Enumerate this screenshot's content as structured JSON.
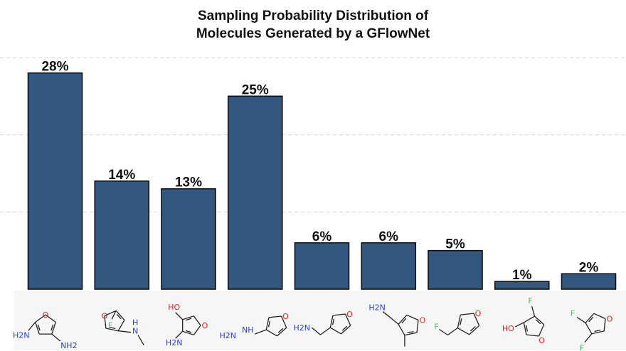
{
  "chart_data": {
    "type": "bar",
    "title_lines": [
      "Sampling Probability Distribution of",
      "Molecules Generated by a GFlowNet"
    ],
    "categories": [
      "mol-1",
      "mol-2",
      "mol-3",
      "mol-4",
      "mol-5",
      "mol-6",
      "mol-7",
      "mol-8",
      "mol-9"
    ],
    "values": [
      28,
      14,
      13,
      25,
      6,
      6,
      5,
      1,
      2
    ],
    "value_labels": [
      "28%",
      "14%",
      "13%",
      "25%",
      "6%",
      "6%",
      "5%",
      "1%",
      "2%"
    ],
    "ylim": [
      0,
      30
    ],
    "grid": true,
    "bar_color": "#34577f",
    "molecule_labels": [
      [
        "O",
        "H2N",
        "NH2"
      ],
      [
        "O",
        "F",
        "N",
        "H"
      ],
      [
        "HO",
        "H2N",
        "O"
      ],
      [
        "H2N",
        "NH",
        "O"
      ],
      [
        "H2N",
        "O"
      ],
      [
        "H2N",
        "O"
      ],
      [
        "F",
        "O"
      ],
      [
        "F",
        "HO",
        "O"
      ],
      [
        "F",
        "F",
        "O"
      ]
    ]
  }
}
